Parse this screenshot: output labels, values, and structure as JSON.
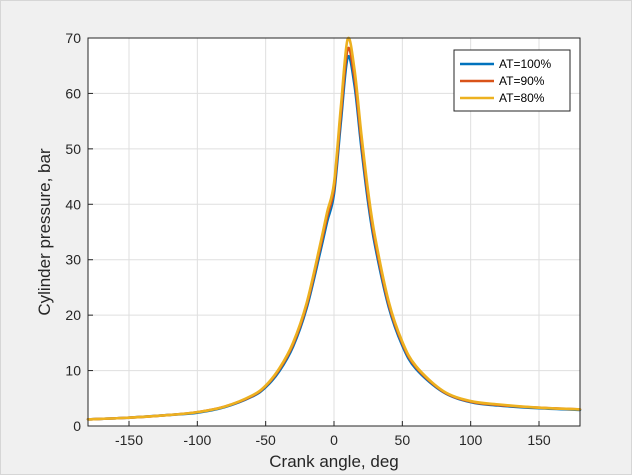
{
  "chart_data": {
    "type": "line",
    "title": "",
    "xlabel": "Crank angle, deg",
    "ylabel": "Cylinder pressure, bar",
    "xlim": [
      -180,
      180
    ],
    "ylim": [
      0,
      70
    ],
    "xticks": [
      -150,
      -100,
      -50,
      0,
      50,
      100,
      150
    ],
    "yticks": [
      0,
      10,
      20,
      30,
      40,
      50,
      60,
      70
    ],
    "grid": true,
    "legend_position": "top-right",
    "series": [
      {
        "name": "AT=100%",
        "color": "#0072BD",
        "x": [
          -180,
          -150,
          -120,
          -100,
          -80,
          -60,
          -50,
          -40,
          -30,
          -20,
          -10,
          -5,
          0,
          5,
          10,
          15,
          20,
          25,
          30,
          40,
          50,
          60,
          80,
          100,
          120,
          150,
          180
        ],
        "y": [
          1.2,
          1.5,
          2.0,
          2.4,
          3.4,
          5.3,
          7.0,
          9.9,
          14.3,
          21.3,
          31.5,
          36.9,
          41.9,
          54.8,
          66.5,
          61.5,
          50.3,
          40.3,
          32.6,
          21.5,
          14.5,
          10.3,
          6.1,
          4.3,
          3.7,
          3.2,
          2.9
        ]
      },
      {
        "name": "AT=90%",
        "color": "#D95319",
        "x": [
          -180,
          -150,
          -120,
          -100,
          -80,
          -60,
          -50,
          -40,
          -30,
          -20,
          -10,
          -5,
          0,
          5,
          10,
          15,
          20,
          25,
          30,
          40,
          50,
          60,
          80,
          100,
          120,
          150,
          180
        ],
        "y": [
          1.2,
          1.5,
          2.0,
          2.5,
          3.5,
          5.4,
          7.2,
          10.2,
          14.7,
          21.8,
          32.3,
          37.8,
          42.9,
          56.2,
          68.0,
          62.8,
          51.5,
          41.3,
          33.4,
          22.0,
          14.9,
          10.6,
          6.2,
          4.4,
          3.8,
          3.3,
          3.0
        ]
      },
      {
        "name": "AT=80%",
        "color": "#EDB120",
        "x": [
          -180,
          -150,
          -120,
          -100,
          -80,
          -60,
          -50,
          -40,
          -30,
          -20,
          -10,
          -5,
          0,
          5,
          10,
          15,
          20,
          25,
          30,
          40,
          50,
          60,
          80,
          100,
          120,
          150,
          180
        ],
        "y": [
          1.2,
          1.5,
          2.0,
          2.5,
          3.5,
          5.5,
          7.3,
          10.4,
          15.0,
          22.2,
          32.9,
          38.6,
          43.8,
          57.5,
          69.8,
          64.3,
          52.7,
          42.3,
          34.2,
          22.5,
          15.2,
          10.8,
          6.3,
          4.5,
          3.9,
          3.3,
          3.0
        ]
      }
    ]
  }
}
